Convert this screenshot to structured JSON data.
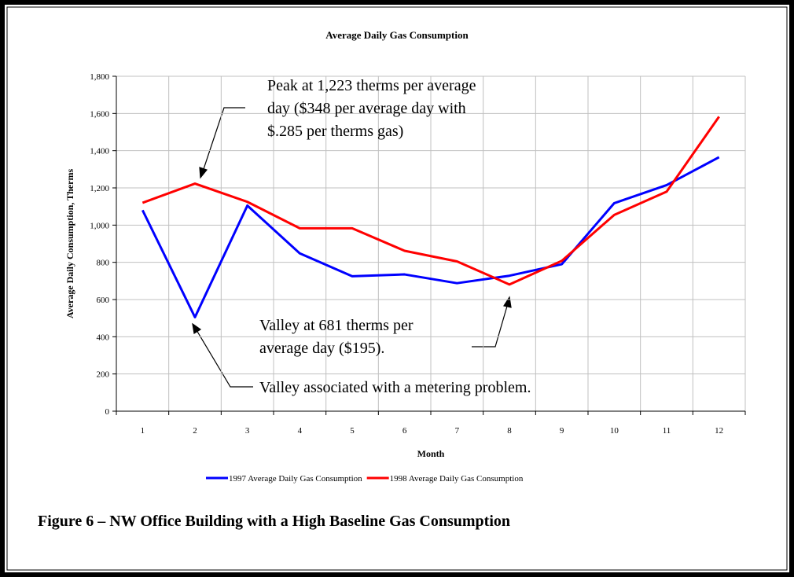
{
  "chart_data": {
    "type": "line",
    "title": "Average Daily Gas Consumption",
    "xlabel": "Month",
    "ylabel": "Average Daily Consumption, Therms",
    "categories": [
      "1",
      "2",
      "3",
      "4",
      "5",
      "6",
      "7",
      "8",
      "9",
      "10",
      "11",
      "12"
    ],
    "series": [
      {
        "name": "1997 Average Daily Gas Consumption",
        "color": "#0000ff",
        "values": [
          1080,
          505,
          1105,
          848,
          725,
          735,
          688,
          728,
          790,
          1118,
          1215,
          1365
        ]
      },
      {
        "name": "1998 Average Daily Gas Consumption",
        "color": "#ff0000",
        "values": [
          1120,
          1223,
          1125,
          983,
          983,
          862,
          805,
          681,
          808,
          1055,
          1180,
          1583
        ]
      }
    ],
    "ylim": [
      0,
      1800
    ],
    "yticks": [
      0,
      200,
      400,
      600,
      800,
      {
        "value": 1000,
        "label": "1,000"
      },
      {
        "value": 1200,
        "label": "1,200"
      },
      {
        "value": 1400,
        "label": "1,400"
      },
      {
        "value": 1600,
        "label": "1,600"
      },
      {
        "value": 1800,
        "label": "1,800"
      }
    ],
    "grid": true,
    "legend": "bottom",
    "annotations": [
      {
        "lines": [
          "Peak at 1,223 therms per average",
          "day ($348 per average day with",
          "$.285 per therms gas)"
        ]
      },
      {
        "lines": [
          "Valley at 681 therms per",
          "average day ($195)."
        ]
      },
      {
        "lines": [
          "Valley associated with a metering problem."
        ]
      }
    ],
    "caption": "Figure 6 – NW Office Building with a High Baseline Gas Consumption"
  }
}
